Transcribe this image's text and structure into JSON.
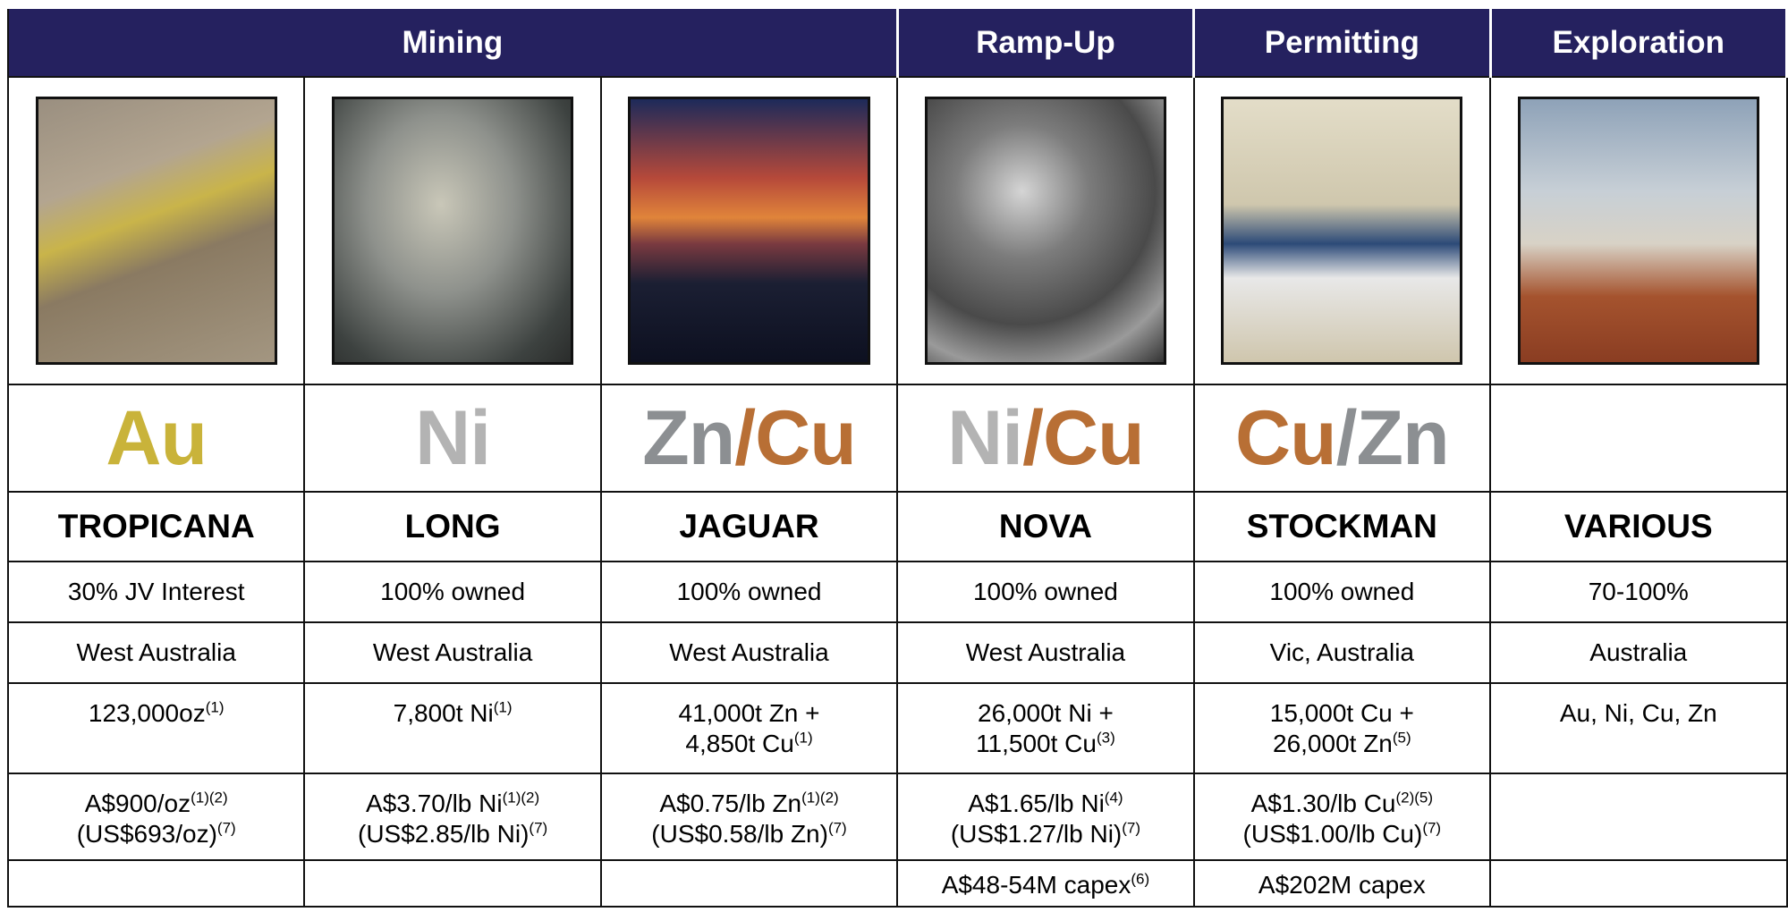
{
  "stages": [
    {
      "label": "Mining",
      "projects": [
        {
          "element": [
            {
              "text": "Au",
              "color": "#c9b33a"
            }
          ],
          "name": "TROPICANA",
          "ownership": "30% JV Interest",
          "location": "West Australia",
          "production": [
            {
              "text": "123,000oz",
              "sup": "(1)"
            }
          ],
          "cost": [
            {
              "text": "A$900/oz",
              "sup": "(1)(2)"
            },
            {
              "text": "(US$693/oz)",
              "sup": "(7)"
            }
          ]
        },
        {
          "element": [
            {
              "text": "Ni",
              "color": "#b3b3b3"
            }
          ],
          "name": "LONG",
          "ownership": "100% owned",
          "location": "West Australia",
          "production": [
            {
              "text": "7,800t Ni",
              "sup": "(1)"
            }
          ],
          "cost": [
            {
              "text": "A$3.70/lb Ni",
              "sup": "(1)(2)"
            },
            {
              "text": "(US$2.85/lb Ni)",
              "sup": "(7)"
            }
          ]
        },
        {
          "element": [
            {
              "text": "Zn",
              "color": "#8c8f92"
            },
            {
              "text": "/Cu",
              "color": "#b86f35"
            }
          ],
          "name": "JAGUAR",
          "ownership": "100% owned",
          "location": "West Australia",
          "production": [
            {
              "text": "41,000t Zn +"
            },
            {
              "text": "4,850t Cu",
              "sup": "(1)"
            }
          ],
          "cost": [
            {
              "text": "A$0.75/lb Zn",
              "sup": "(1)(2)"
            },
            {
              "text": "(US$0.58/lb Zn)",
              "sup": "(7)"
            }
          ]
        }
      ]
    },
    {
      "label": "Ramp-Up",
      "projects": [
        {
          "element": [
            {
              "text": "Ni",
              "color": "#b3b3b3"
            },
            {
              "text": "/Cu",
              "color": "#b86f35"
            }
          ],
          "name": "NOVA",
          "ownership": "100% owned",
          "location": "West Australia",
          "production": [
            {
              "text": "26,000t Ni +"
            },
            {
              "text": "11,500t Cu",
              "sup": "(3)"
            }
          ],
          "cost": [
            {
              "text": "A$1.65/lb Ni",
              "sup": "(4)"
            },
            {
              "text": "(US$1.27/lb Ni)",
              "sup": "(7)"
            }
          ],
          "capex": [
            {
              "text": "A$48-54M capex",
              "sup": "(6)"
            }
          ]
        }
      ]
    },
    {
      "label": "Permitting",
      "projects": [
        {
          "element": [
            {
              "text": "Cu",
              "color": "#b86f35"
            },
            {
              "text": "/Zn",
              "color": "#8c8f92"
            }
          ],
          "name": "STOCKMAN",
          "ownership": "100% owned",
          "location": "Vic, Australia",
          "production": [
            {
              "text": "15,000t Cu +"
            },
            {
              "text": "26,000t Zn",
              "sup": "(5)"
            }
          ],
          "cost": [
            {
              "text": "A$1.30/lb Cu",
              "sup": "(2)(5)"
            },
            {
              "text": "(US$1.00/lb Cu)",
              "sup": "(7)"
            }
          ],
          "capex": [
            {
              "text": "A$202M capex"
            }
          ]
        }
      ]
    },
    {
      "label": "Exploration",
      "projects": [
        {
          "name": "VARIOUS",
          "ownership": "70-100%",
          "location": "Australia",
          "production": [
            {
              "text": "Au, Ni, Cu, Zn"
            }
          ]
        }
      ]
    }
  ]
}
